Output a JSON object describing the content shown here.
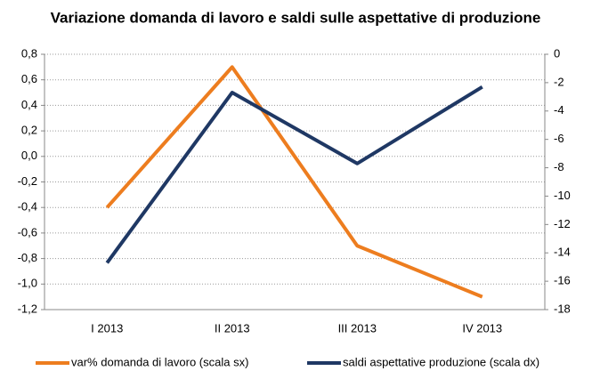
{
  "chart_data": {
    "type": "line",
    "title": "Variazione domanda di lavoro e saldi sulle aspettative di produzione",
    "categories": [
      "I 2013",
      "II 2013",
      "III 2013",
      "IV 2013"
    ],
    "series": [
      {
        "name": "var% domanda di lavoro (scala sx)",
        "color": "#ed7d1f",
        "values": [
          -0.4,
          0.7,
          -0.7,
          -1.1
        ]
      },
      {
        "name": "saldi aspettative produzione (scala dx)",
        "color": "#1f3864",
        "values": [
          -14.7,
          -2.7,
          -7.7,
          -2.3
        ],
        "axis": "y2"
      }
    ],
    "ylim": [
      -1.2,
      0.8
    ],
    "yticks": [
      {
        "value": 0.8,
        "label": "0,8"
      },
      {
        "value": 0.6,
        "label": "0,6"
      },
      {
        "value": 0.4,
        "label": "0,4"
      },
      {
        "value": 0.2,
        "label": "0,2"
      },
      {
        "value": 0.0,
        "label": "0,0"
      },
      {
        "value": -0.2,
        "label": "-0,2"
      },
      {
        "value": -0.4,
        "label": "-0,4"
      },
      {
        "value": -0.6,
        "label": "-0,6"
      },
      {
        "value": -0.8,
        "label": "-0,8"
      },
      {
        "value": -1.0,
        "label": "-1,0"
      },
      {
        "value": -1.2,
        "label": "-1,2"
      }
    ],
    "y2lim": [
      -18,
      0
    ],
    "y2ticks": [
      0,
      -2,
      -4,
      -6,
      -8,
      -10,
      -12,
      -14,
      -16,
      -18
    ],
    "grid": true,
    "legend": "bottom"
  }
}
